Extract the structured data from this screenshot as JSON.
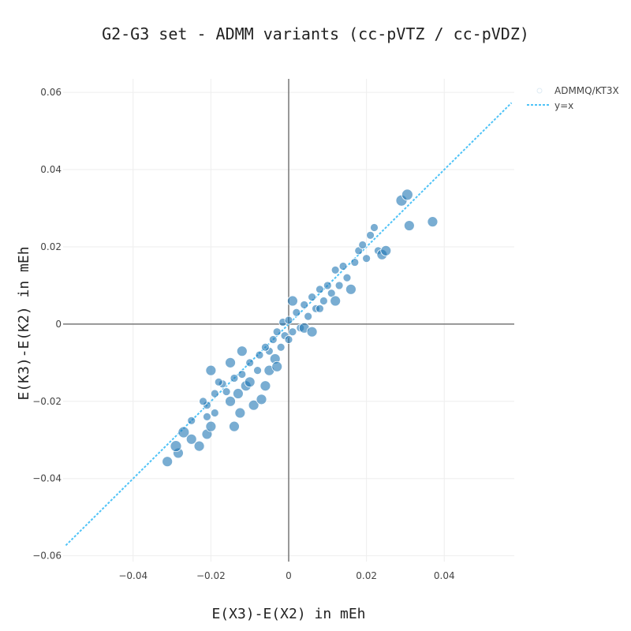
{
  "chart_data": {
    "type": "scatter",
    "title": "G2-G3 set - ADMM variants (cc-pVTZ / cc-pVDZ)",
    "xlabel": "E(X3)-E(X2) in mEh",
    "ylabel": "E(K3)-E(K2) in mEh",
    "xlim": [
      -0.058,
      0.058
    ],
    "ylim": [
      -0.0615,
      0.0635
    ],
    "x_ticks": [
      -0.04,
      -0.02,
      0,
      0.02,
      0.04
    ],
    "x_tick_labels": [
      "−0.04",
      "−0.02",
      "0",
      "0.02",
      "0.04"
    ],
    "y_ticks": [
      -0.06,
      -0.04,
      -0.02,
      0,
      0.02,
      0.04,
      0.06
    ],
    "y_tick_labels": [
      "−0.06",
      "−0.04",
      "−0.02",
      "0",
      "0.02",
      "0.04",
      "0.06"
    ],
    "grid": true,
    "legend_position": "top-right",
    "colors": {
      "marker": "#1f77b4",
      "diagonal": "#4fc3f7",
      "grid": "#eeeeee",
      "zeroline": "#777777"
    },
    "series": [
      {
        "name": "ADMMQ/KT3X",
        "type": "scatter",
        "points": [
          [
            -0.0312,
            -0.0356
          ],
          [
            -0.0284,
            -0.0334
          ],
          [
            -0.029,
            -0.0316
          ],
          [
            -0.027,
            -0.028
          ],
          [
            -0.025,
            -0.0298
          ],
          [
            -0.023,
            -0.0316
          ],
          [
            -0.025,
            -0.025
          ],
          [
            -0.021,
            -0.0285
          ],
          [
            -0.021,
            -0.024
          ],
          [
            -0.021,
            -0.021
          ],
          [
            -0.02,
            -0.0265
          ],
          [
            -0.019,
            -0.018
          ],
          [
            -0.019,
            -0.023
          ],
          [
            -0.017,
            -0.0155
          ],
          [
            -0.016,
            -0.0175
          ],
          [
            -0.015,
            -0.02
          ],
          [
            -0.014,
            -0.014
          ],
          [
            -0.013,
            -0.018
          ],
          [
            -0.014,
            -0.0265
          ],
          [
            -0.0125,
            -0.023
          ],
          [
            -0.012,
            -0.013
          ],
          [
            -0.011,
            -0.016
          ],
          [
            -0.01,
            -0.01
          ],
          [
            -0.01,
            -0.015
          ],
          [
            -0.009,
            -0.021
          ],
          [
            -0.008,
            -0.012
          ],
          [
            -0.007,
            -0.0195
          ],
          [
            -0.0075,
            -0.008
          ],
          [
            -0.006,
            -0.016
          ],
          [
            -0.005,
            -0.007
          ],
          [
            -0.005,
            -0.012
          ],
          [
            -0.004,
            -0.004
          ],
          [
            -0.0035,
            -0.009
          ],
          [
            -0.003,
            -0.002
          ],
          [
            -0.002,
            -0.006
          ],
          [
            -0.0015,
            0.0005
          ],
          [
            -0.001,
            -0.003
          ],
          [
            0.0,
            0.001
          ],
          [
            0.0,
            -0.004
          ],
          [
            0.001,
            -0.002
          ],
          [
            0.002,
            0.003
          ],
          [
            0.003,
            -0.001
          ],
          [
            0.004,
            0.005
          ],
          [
            0.005,
            0.002
          ],
          [
            0.006,
            0.007
          ],
          [
            0.007,
            0.004
          ],
          [
            0.008,
            0.009
          ],
          [
            0.009,
            0.006
          ],
          [
            0.01,
            0.01
          ],
          [
            0.011,
            0.008
          ],
          [
            0.012,
            0.014
          ],
          [
            0.013,
            0.01
          ],
          [
            0.014,
            0.015
          ],
          [
            0.015,
            0.012
          ],
          [
            0.017,
            0.016
          ],
          [
            0.018,
            0.019
          ],
          [
            0.019,
            0.0205
          ],
          [
            0.02,
            0.017
          ],
          [
            0.021,
            0.023
          ],
          [
            0.022,
            0.025
          ],
          [
            0.023,
            0.019
          ],
          [
            0.024,
            0.018
          ],
          [
            0.025,
            0.019
          ],
          [
            0.029,
            0.032
          ],
          [
            0.0305,
            0.0335
          ],
          [
            0.031,
            0.0255
          ],
          [
            0.037,
            0.0265
          ],
          [
            -0.02,
            -0.012
          ],
          [
            -0.015,
            -0.01
          ],
          [
            -0.006,
            -0.006
          ],
          [
            0.004,
            -0.001
          ],
          [
            0.008,
            0.004
          ],
          [
            0.006,
            -0.002
          ],
          [
            0.012,
            0.006
          ],
          [
            0.016,
            0.009
          ],
          [
            -0.012,
            -0.007
          ],
          [
            -0.018,
            -0.015
          ],
          [
            -0.022,
            -0.02
          ],
          [
            -0.003,
            -0.011
          ],
          [
            0.001,
            0.006
          ]
        ]
      },
      {
        "name": "y=x",
        "type": "line",
        "x": [
          -0.0573,
          0.0573
        ],
        "y": [
          -0.0573,
          0.0573
        ]
      }
    ]
  }
}
